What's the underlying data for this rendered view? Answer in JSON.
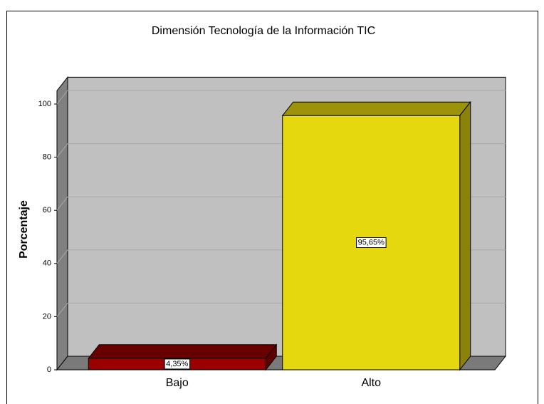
{
  "chart_data": {
    "type": "bar3d",
    "title": "Dimensión Tecnología de la Información  TIC",
    "y_label": "Porcentaje",
    "categories": [
      "Bajo",
      "Alto"
    ],
    "values": [
      4.35,
      95.65
    ],
    "value_labels": [
      "4,35%",
      "95,65%"
    ],
    "colors": [
      "#9b0000",
      "#e6d80f"
    ],
    "ylim": [
      0,
      105
    ],
    "yticks": [
      0,
      20,
      40,
      60,
      80,
      100
    ],
    "grid": true
  }
}
